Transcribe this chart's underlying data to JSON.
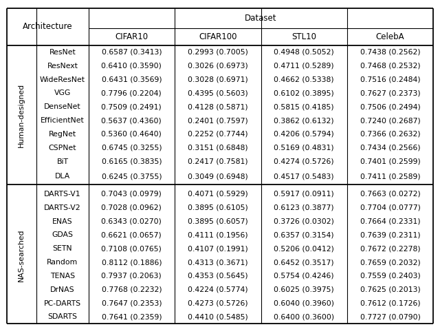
{
  "header_top": "Dataset",
  "header_left": "Architecture",
  "col_headers": [
    "CIFAR10",
    "CIFAR100",
    "STL10",
    "CelebA"
  ],
  "group1_label": "Human-designed",
  "group1_rows": [
    [
      "ResNet",
      "0.6587 (0.3413)",
      "0.2993 (0.7005)",
      "0.4948 (0.5052)",
      "0.7438 (0.2562)"
    ],
    [
      "ResNext",
      "0.6410 (0.3590)",
      "0.3026 (0.6973)",
      "0.4711 (0.5289)",
      "0.7468 (0.2532)"
    ],
    [
      "WideResNet",
      "0.6431 (0.3569)",
      "0.3028 (0.6971)",
      "0.4662 (0.5338)",
      "0.7516 (0.2484)"
    ],
    [
      "VGG",
      "0.7796 (0.2204)",
      "0.4395 (0.5603)",
      "0.6102 (0.3895)",
      "0.7627 (0.2373)"
    ],
    [
      "DenseNet",
      "0.7509 (0.2491)",
      "0.4128 (0.5871)",
      "0.5815 (0.4185)",
      "0.7506 (0.2494)"
    ],
    [
      "EfficientNet",
      "0.5637 (0.4360)",
      "0.2401 (0.7597)",
      "0.3862 (0.6132)",
      "0.7240 (0.2687)"
    ],
    [
      "RegNet",
      "0.5360 (0.4640)",
      "0.2252 (0.7744)",
      "0.4206 (0.5794)",
      "0.7366 (0.2632)"
    ],
    [
      "CSPNet",
      "0.6745 (0.3255)",
      "0.3151 (0.6848)",
      "0.5169 (0.4831)",
      "0.7434 (0.2566)"
    ],
    [
      "BiT",
      "0.6165 (0.3835)",
      "0.2417 (0.7581)",
      "0.4274 (0.5726)",
      "0.7401 (0.2599)"
    ],
    [
      "DLA",
      "0.6245 (0.3755)",
      "0.3049 (0.6948)",
      "0.4517 (0.5483)",
      "0.7411 (0.2589)"
    ]
  ],
  "group2_label": "NAS-searched",
  "group2_rows": [
    [
      "DARTS-V1",
      "0.7043 (0.0979)",
      "0.4071 (0.5929)",
      "0.5917 (0.0911)",
      "0.7663 (0.0272)"
    ],
    [
      "DARTS-V2",
      "0.7028 (0.0962)",
      "0.3895 (0.6105)",
      "0.6123 (0.3877)",
      "0.7704 (0.0777)"
    ],
    [
      "ENAS",
      "0.6343 (0.0270)",
      "0.3895 (0.6057)",
      "0.3726 (0.0302)",
      "0.7664 (0.2331)"
    ],
    [
      "GDAS",
      "0.6621 (0.0657)",
      "0.4111 (0.1956)",
      "0.6357 (0.3154)",
      "0.7639 (0.2311)"
    ],
    [
      "SETN",
      "0.7108 (0.0765)",
      "0.4107 (0.1991)",
      "0.5206 (0.0412)",
      "0.7672 (0.2278)"
    ],
    [
      "Random",
      "0.8112 (0.1886)",
      "0.4313 (0.3671)",
      "0.6452 (0.3517)",
      "0.7659 (0.2032)"
    ],
    [
      "TENAS",
      "0.7937 (0.2063)",
      "0.4353 (0.5645)",
      "0.5754 (0.4246)",
      "0.7559 (0.2403)"
    ],
    [
      "DrNAS",
      "0.7768 (0.2232)",
      "0.4224 (0.5774)",
      "0.6025 (0.3975)",
      "0.7625 (0.2013)"
    ],
    [
      "PC-DARTS",
      "0.7647 (0.2353)",
      "0.4273 (0.5726)",
      "0.6040 (0.3960)",
      "0.7612 (0.1726)"
    ],
    [
      "SDARTS",
      "0.7641 (0.2359)",
      "0.4410 (0.5485)",
      "0.6400 (0.3600)",
      "0.7727 (0.0790)"
    ]
  ],
  "bg_color": "#ffffff",
  "text_color": "#000000",
  "font_size": 7.8,
  "header_font_size": 8.5,
  "fig_width": 6.4,
  "fig_height": 4.75,
  "dpi": 100
}
